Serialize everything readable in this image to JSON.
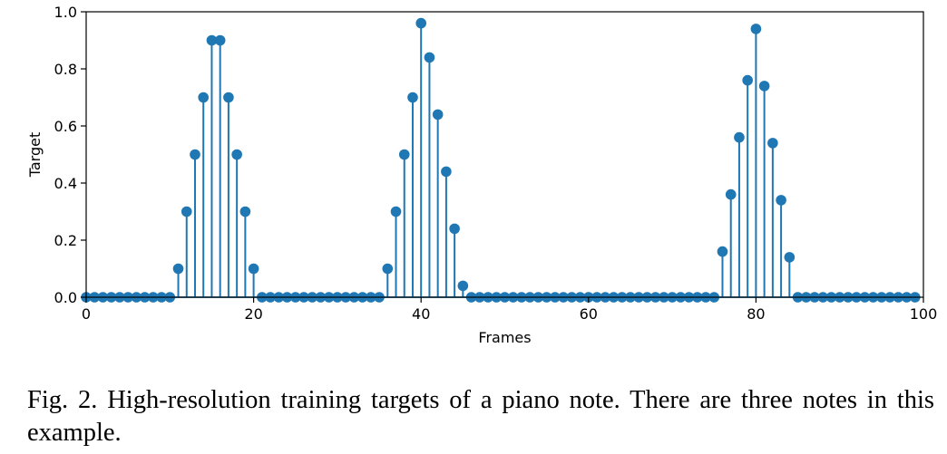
{
  "chart_data": {
    "type": "stem",
    "xlabel": "Frames",
    "ylabel": "Target",
    "xlim": [
      0,
      100
    ],
    "ylim": [
      0,
      1.0
    ],
    "x_ticks": [
      0,
      20,
      40,
      60,
      80,
      100
    ],
    "y_ticks": [
      0.0,
      0.2,
      0.4,
      0.6,
      0.8,
      1.0
    ],
    "x_tick_labels": [
      "0",
      "20",
      "40",
      "60",
      "80",
      "100"
    ],
    "y_tick_labels": [
      "0.0",
      "0.2",
      "0.4",
      "0.6",
      "0.8",
      "1.0"
    ],
    "grid": false,
    "color": "#1f77b4",
    "x": [
      0,
      1,
      2,
      3,
      4,
      5,
      6,
      7,
      8,
      9,
      10,
      11,
      12,
      13,
      14,
      15,
      16,
      17,
      18,
      19,
      20,
      21,
      22,
      23,
      24,
      25,
      26,
      27,
      28,
      29,
      30,
      31,
      32,
      33,
      34,
      35,
      36,
      37,
      38,
      39,
      40,
      41,
      42,
      43,
      44,
      45,
      46,
      47,
      48,
      49,
      50,
      51,
      52,
      53,
      54,
      55,
      56,
      57,
      58,
      59,
      60,
      61,
      62,
      63,
      64,
      65,
      66,
      67,
      68,
      69,
      70,
      71,
      72,
      73,
      74,
      75,
      76,
      77,
      78,
      79,
      80,
      81,
      82,
      83,
      84,
      85,
      86,
      87,
      88,
      89,
      90,
      91,
      92,
      93,
      94,
      95,
      96,
      97,
      98,
      99
    ],
    "values": [
      0,
      0,
      0,
      0,
      0,
      0,
      0,
      0,
      0,
      0,
      0,
      0.1,
      0.3,
      0.5,
      0.7,
      0.9,
      0.9,
      0.7,
      0.5,
      0.3,
      0.1,
      0,
      0,
      0,
      0,
      0,
      0,
      0,
      0,
      0,
      0,
      0,
      0,
      0,
      0,
      0,
      0.1,
      0.3,
      0.5,
      0.7,
      0.96,
      0.84,
      0.64,
      0.44,
      0.24,
      0.04,
      0,
      0,
      0,
      0,
      0,
      0,
      0,
      0,
      0,
      0,
      0,
      0,
      0,
      0,
      0,
      0,
      0,
      0,
      0,
      0,
      0,
      0,
      0,
      0,
      0,
      0,
      0,
      0,
      0,
      0,
      0.16,
      0.36,
      0.56,
      0.76,
      0.94,
      0.74,
      0.54,
      0.34,
      0.14,
      0,
      0,
      0,
      0,
      0,
      0,
      0,
      0,
      0,
      0,
      0,
      0,
      0,
      0,
      0
    ]
  },
  "caption": "Fig. 2.  High-resolution training targets of a piano note. There are three notes in this example."
}
